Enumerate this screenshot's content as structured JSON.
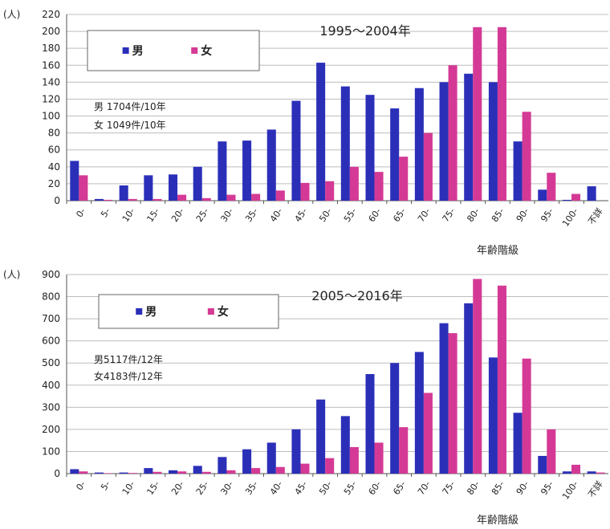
{
  "colors": {
    "male": "#2b2fb8",
    "female": "#d43a95",
    "grid": "#bdbdbd",
    "axis": "#555555"
  },
  "chart_data": [
    {
      "type": "bar",
      "title": "1995～2004年",
      "unit_label": "(人)",
      "xlabel": "年齢階級",
      "ylim": [
        0,
        220
      ],
      "yticks": [
        "220",
        "200",
        "180",
        "160",
        "140",
        "120",
        "100",
        "80",
        "60",
        "40",
        "20",
        "0"
      ],
      "categories": [
        "0-",
        "5-",
        "10-",
        "15-",
        "20-",
        "25-",
        "30-",
        "35-",
        "40-",
        "45-",
        "50-",
        "55-",
        "60-",
        "65-",
        "70-",
        "75-",
        "80-",
        "85-",
        "90-",
        "95-",
        "100-",
        "不詳"
      ],
      "legend": {
        "male": "男",
        "female": "女"
      },
      "annotation": [
        "男 1704件/10年",
        "女 1049件/10年"
      ],
      "series": [
        {
          "name": "男",
          "values": [
            47,
            2,
            18,
            30,
            31,
            40,
            70,
            71,
            84,
            118,
            163,
            135,
            125,
            109,
            133,
            140,
            150,
            140,
            70,
            13,
            1,
            17
          ]
        },
        {
          "name": "女",
          "values": [
            30,
            1,
            2,
            2,
            7,
            3,
            7,
            8,
            12,
            21,
            23,
            40,
            34,
            52,
            80,
            160,
            205,
            205,
            105,
            33,
            8,
            0
          ]
        }
      ]
    },
    {
      "type": "bar",
      "title": "2005～2016年",
      "unit_label": "(人)",
      "xlabel": "年齢階級",
      "ylim": [
        0,
        900
      ],
      "yticks": [
        "900",
        "800",
        "700",
        "600",
        "500",
        "400",
        "300",
        "200",
        "100",
        "0"
      ],
      "categories": [
        "0-",
        "5-",
        "10-",
        "15-",
        "20-",
        "25-",
        "30-",
        "35-",
        "40-",
        "45-",
        "50-",
        "55-",
        "60-",
        "65-",
        "70-",
        "75-",
        "80-",
        "85-",
        "90-",
        "95-",
        "100-",
        "不詳"
      ],
      "legend": {
        "male": "男",
        "female": "女"
      },
      "annotation": [
        "男5117件/12年",
        "女4183件/12年"
      ],
      "series": [
        {
          "name": "男",
          "values": [
            20,
            5,
            5,
            25,
            15,
            35,
            75,
            110,
            140,
            200,
            335,
            260,
            450,
            500,
            550,
            680,
            770,
            525,
            275,
            80,
            10,
            10
          ]
        },
        {
          "name": "女",
          "values": [
            10,
            2,
            3,
            8,
            10,
            8,
            15,
            25,
            30,
            45,
            70,
            120,
            140,
            210,
            365,
            635,
            880,
            850,
            520,
            200,
            40,
            5
          ]
        }
      ]
    }
  ]
}
